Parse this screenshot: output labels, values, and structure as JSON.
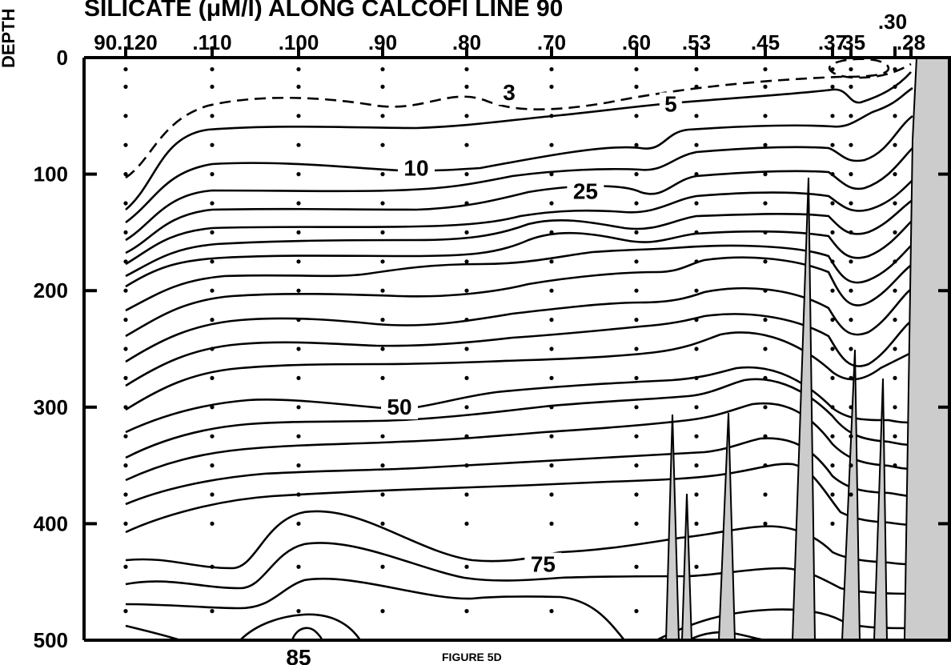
{
  "chart_data": {
    "type": "contour",
    "title": "SILICATE  (μM/l)  ALONG CALCOFI LINE 90",
    "ylabel": "DEPTH",
    "figure_label": "FIGURE 5D",
    "ylim": [
      0,
      500
    ],
    "y_ticks": [
      0,
      100,
      200,
      300,
      400,
      500
    ],
    "station_labels": [
      {
        "label": "90.120",
        "station": 120
      },
      {
        "label": ".110",
        "station": 110
      },
      {
        "label": ".100",
        "station": 100
      },
      {
        "label": ".90",
        "station": 90
      },
      {
        "label": ".80",
        "station": 80
      },
      {
        "label": ".70",
        "station": 70
      },
      {
        "label": ".60",
        "station": 60
      },
      {
        "label": ".53",
        "station": 53
      },
      {
        "label": ".45",
        "station": 45
      },
      {
        "label": ".37",
        "station": 37
      },
      {
        "label": ".35",
        "station": 35
      },
      {
        "label": ".30",
        "station": 30
      },
      {
        "label": ".28",
        "station": 28
      }
    ],
    "contour_labels": [
      {
        "text": "3",
        "station": 75,
        "depth": 35
      },
      {
        "text": "5",
        "station": 56,
        "depth": 45
      },
      {
        "text": "10",
        "station": 86,
        "depth": 100
      },
      {
        "text": "25",
        "station": 66,
        "depth": 120
      },
      {
        "text": "50",
        "station": 88,
        "depth": 305
      },
      {
        "text": "75",
        "station": 71,
        "depth": 440
      },
      {
        "text": "85",
        "station": 100,
        "depth": 520
      }
    ],
    "sample_depths": [
      10,
      25,
      50,
      75,
      100,
      125,
      150,
      175,
      200,
      225,
      250,
      275,
      300,
      325,
      350,
      375,
      400,
      437,
      475
    ]
  }
}
